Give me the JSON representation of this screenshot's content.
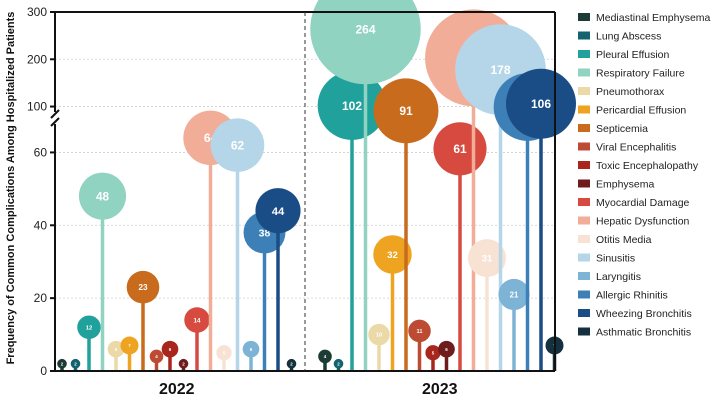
{
  "chart_data": {
    "type": "bar",
    "subtype": "lollipop-with-bubbles",
    "ylabel": "Frequency of Common Complications Among Hospitalized Patients",
    "categories": [
      "2022",
      "2023"
    ],
    "y_axis": {
      "broken": true,
      "lower_ticks": [
        0,
        20,
        40,
        60
      ],
      "upper_ticks": [
        100,
        200,
        300
      ],
      "lower_range": [
        0,
        70
      ],
      "upper_range": [
        80,
        300
      ]
    },
    "grid": true,
    "legend_position": "right",
    "series": [
      {
        "name": "Mediastinal Emphysema",
        "color": "#1c3b34",
        "values": [
          2,
          4
        ]
      },
      {
        "name": "Lung Abscess",
        "color": "#13636f",
        "values": [
          2,
          2
        ]
      },
      {
        "name": "Pleural Effusion",
        "color": "#21a19b",
        "values": [
          12,
          102
        ]
      },
      {
        "name": "Respiratory Failure",
        "color": "#8fd3c0",
        "values": [
          48,
          264
        ]
      },
      {
        "name": "Pneumothorax",
        "color": "#ecd9a8",
        "values": [
          6,
          10
        ]
      },
      {
        "name": "Pericardial Effusion",
        "color": "#eea321",
        "values": [
          7,
          32
        ]
      },
      {
        "name": "Septicemia",
        "color": "#c96b1c",
        "values": [
          23,
          91
        ]
      },
      {
        "name": "Viral Encephalitis",
        "color": "#bd4a33",
        "values": [
          4,
          11
        ]
      },
      {
        "name": "Toxic Encephalopathy",
        "color": "#a8261c",
        "values": [
          6,
          5
        ]
      },
      {
        "name": "Emphysema",
        "color": "#6f1c1c",
        "values": [
          2,
          6
        ]
      },
      {
        "name": "Myocardial Damage",
        "color": "#d64a3f",
        "values": [
          14,
          61
        ]
      },
      {
        "name": "Hepatic Dysfunction",
        "color": "#f2ad98",
        "values": [
          64,
          203
        ]
      },
      {
        "name": "Otitis Media",
        "color": "#f7e2d3",
        "values": [
          5,
          31
        ]
      },
      {
        "name": "Sinusitis",
        "color": "#b4d6e8",
        "values": [
          62,
          178
        ]
      },
      {
        "name": "Laryngitis",
        "color": "#7db4d6",
        "values": [
          6,
          21
        ]
      },
      {
        "name": "Allergic Rhinitis",
        "color": "#3d80b8",
        "values": [
          38,
          99
        ]
      },
      {
        "name": "Wheezing Bronchitis",
        "color": "#1a4c85",
        "values": [
          44,
          106
        ]
      },
      {
        "name": "Asthmatic Bronchitis",
        "color": "#15303e",
        "values": [
          2,
          7
        ]
      }
    ]
  }
}
